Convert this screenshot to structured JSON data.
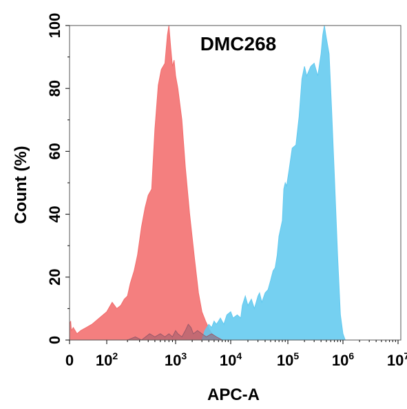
{
  "chart_data": {
    "type": "area",
    "title": "DMC268",
    "xlabel": "APC-A",
    "ylabel": "Count  (%)",
    "x_scale": "biexponential",
    "xlim": [
      0,
      10000000
    ],
    "ylim": [
      0,
      100
    ],
    "x_ticks": [
      {
        "base": "0",
        "exp": ""
      },
      {
        "base": "10",
        "exp": "2"
      },
      {
        "base": "10",
        "exp": "3"
      },
      {
        "base": "10",
        "exp": "4"
      },
      {
        "base": "10",
        "exp": "5"
      },
      {
        "base": "10",
        "exp": "6"
      },
      {
        "base": "10",
        "exp": "7"
      }
    ],
    "y_ticks": [
      "0",
      "20",
      "40",
      "60",
      "80",
      "100"
    ],
    "grid": false,
    "legend": "none",
    "series": [
      {
        "color": "#f26d6d",
        "fill_opacity": 0.88,
        "points": [
          [
            0,
            5
          ],
          [
            3,
            6
          ],
          [
            5,
            3
          ],
          [
            10,
            4
          ],
          [
            20,
            2
          ],
          [
            30,
            3
          ],
          [
            45,
            4
          ],
          [
            60,
            5
          ],
          [
            80,
            7
          ],
          [
            100,
            9
          ],
          [
            120,
            12
          ],
          [
            140,
            10
          ],
          [
            160,
            11
          ],
          [
            180,
            13
          ],
          [
            200,
            14
          ],
          [
            220,
            18
          ],
          [
            250,
            22
          ],
          [
            280,
            27
          ],
          [
            320,
            36
          ],
          [
            360,
            42
          ],
          [
            400,
            46
          ],
          [
            450,
            48
          ],
          [
            500,
            67
          ],
          [
            560,
            81
          ],
          [
            620,
            86
          ],
          [
            700,
            88
          ],
          [
            760,
            97
          ],
          [
            800,
            100
          ],
          [
            850,
            93
          ],
          [
            900,
            87
          ],
          [
            950,
            89
          ],
          [
            1000,
            84
          ],
          [
            1100,
            80
          ],
          [
            1300,
            70
          ],
          [
            1500,
            55
          ],
          [
            1800,
            40
          ],
          [
            2200,
            26
          ],
          [
            2600,
            15
          ],
          [
            3000,
            9
          ],
          [
            3500,
            6
          ],
          [
            4200,
            3
          ],
          [
            5000,
            1
          ],
          [
            6000,
            0
          ]
        ]
      },
      {
        "color": "#62c9ef",
        "fill_opacity": 0.88,
        "points": [
          [
            3000,
            0
          ],
          [
            3400,
            3
          ],
          [
            4000,
            5
          ],
          [
            4500,
            4
          ],
          [
            5000,
            6
          ],
          [
            5500,
            5
          ],
          [
            6000,
            6
          ],
          [
            6500,
            7
          ],
          [
            7500,
            5
          ],
          [
            8500,
            8
          ],
          [
            10000,
            9
          ],
          [
            11000,
            7
          ],
          [
            13000,
            8
          ],
          [
            15000,
            7
          ],
          [
            16000,
            11
          ],
          [
            18000,
            14
          ],
          [
            20000,
            11
          ],
          [
            23000,
            13
          ],
          [
            26000,
            10
          ],
          [
            30000,
            14
          ],
          [
            32000,
            15
          ],
          [
            35000,
            12
          ],
          [
            40000,
            15
          ],
          [
            45000,
            16
          ],
          [
            50000,
            19
          ],
          [
            55000,
            22
          ],
          [
            60000,
            23
          ],
          [
            65000,
            27
          ],
          [
            70000,
            33
          ],
          [
            80000,
            38
          ],
          [
            85000,
            48
          ],
          [
            90000,
            50
          ],
          [
            95000,
            49
          ],
          [
            105000,
            54
          ],
          [
            120000,
            61
          ],
          [
            140000,
            62
          ],
          [
            160000,
            71
          ],
          [
            180000,
            83
          ],
          [
            200000,
            87
          ],
          [
            220000,
            84
          ],
          [
            260000,
            87
          ],
          [
            300000,
            88
          ],
          [
            350000,
            84
          ],
          [
            400000,
            91
          ],
          [
            430000,
            97
          ],
          [
            460000,
            100
          ],
          [
            500000,
            96
          ],
          [
            560000,
            91
          ],
          [
            620000,
            74
          ],
          [
            700000,
            52
          ],
          [
            800000,
            27
          ],
          [
            900000,
            8
          ],
          [
            1000000,
            2
          ],
          [
            1100000,
            0
          ]
        ]
      },
      {
        "color": "#9a5a6a",
        "fill_opacity": 0.55,
        "points": [
          [
            200,
            0
          ],
          [
            260,
            1
          ],
          [
            320,
            0
          ],
          [
            420,
            2
          ],
          [
            500,
            1
          ],
          [
            600,
            2
          ],
          [
            700,
            1
          ],
          [
            800,
            2
          ],
          [
            900,
            1
          ],
          [
            1000,
            3
          ],
          [
            1100,
            2
          ],
          [
            1300,
            1
          ],
          [
            1500,
            3
          ],
          [
            1700,
            5
          ],
          [
            1900,
            4
          ],
          [
            2100,
            2
          ],
          [
            2500,
            3
          ],
          [
            3000,
            2
          ],
          [
            3600,
            1
          ],
          [
            4500,
            2
          ],
          [
            5500,
            1
          ],
          [
            7000,
            0
          ],
          [
            9000,
            0
          ]
        ]
      }
    ]
  }
}
